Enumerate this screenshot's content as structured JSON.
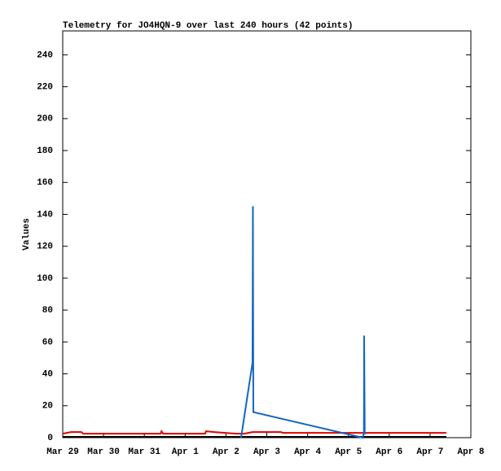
{
  "chart_data": {
    "type": "line",
    "title": "Telemetry for JO4HQN-9 over last 240 hours (42 points)",
    "y_label": "Values",
    "xlim": [
      0,
      10
    ],
    "xticks": [
      {
        "value": 0,
        "label": "Mar 29"
      },
      {
        "value": 1,
        "label": "Mar 30"
      },
      {
        "value": 2,
        "label": "Mar 31"
      },
      {
        "value": 3,
        "label": "Apr 1"
      },
      {
        "value": 4,
        "label": "Apr 2"
      },
      {
        "value": 5,
        "label": "Apr 3"
      },
      {
        "value": 6,
        "label": "Apr 4"
      },
      {
        "value": 7,
        "label": "Apr 5"
      },
      {
        "value": 8,
        "label": "Apr 6"
      },
      {
        "value": 9,
        "label": "Apr 7"
      },
      {
        "value": 10,
        "label": "Apr 8"
      }
    ],
    "ylim": [
      0,
      255
    ],
    "yticks": [
      0,
      20,
      40,
      60,
      80,
      100,
      120,
      140,
      160,
      180,
      200,
      220,
      240
    ],
    "series": [
      {
        "color": "#000000",
        "x": [
          0,
          9.4
        ],
        "values": [
          0.5,
          0.5
        ]
      },
      {
        "color": "#e00000",
        "x": [
          0,
          0.2,
          0.46,
          0.5,
          2.4,
          2.42,
          2.46,
          3.49,
          3.51,
          3.71,
          4.25,
          4.45,
          4.65,
          5.35,
          5.39,
          9.4
        ],
        "values": [
          2.5,
          3.5,
          3.5,
          2.5,
          2.5,
          4,
          2.5,
          2.5,
          4,
          3.5,
          2.5,
          2.5,
          3.5,
          3.5,
          3,
          3
        ]
      },
      {
        "color": "#1565c0",
        "x": [
          4.37,
          4.65,
          4.66,
          4.67,
          7.35,
          7.38,
          7.385,
          7.4
        ],
        "values": [
          0,
          47,
          145,
          16,
          0,
          3,
          64,
          2
        ]
      }
    ]
  }
}
